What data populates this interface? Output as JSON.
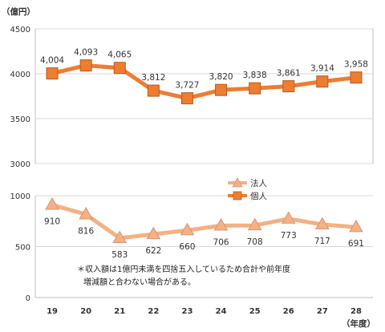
{
  "chart_data": {
    "type": "line",
    "y_unit_label": "（億円）",
    "x_unit_label": "（年度）",
    "categories": [
      "19",
      "20",
      "21",
      "22",
      "23",
      "24",
      "25",
      "26",
      "27",
      "28"
    ],
    "panels": [
      {
        "ylim": [
          3000,
          4500
        ],
        "yticks": [
          "3000",
          "3500",
          "4000",
          "4500"
        ],
        "series": [
          {
            "name": "個人",
            "color": "#ED7D31",
            "marker": "square",
            "values": [
              4004,
              4093,
              4065,
              3812,
              3727,
              3820,
              3838,
              3861,
              3914,
              3958
            ],
            "labels": [
              "4,004",
              "4,093",
              "4,065",
              "3,812",
              "3,727",
              "3,820",
              "3,838",
              "3,861",
              "3,914",
              "3,958"
            ]
          }
        ]
      },
      {
        "ylim": [
          0,
          1000
        ],
        "yticks": [
          "0",
          "500",
          "1000"
        ],
        "series": [
          {
            "name": "法人",
            "color": "#F4B183",
            "marker": "triangle",
            "values": [
              910,
              816,
              583,
              622,
              660,
              706,
              708,
              773,
              717,
              691
            ],
            "labels": [
              "910",
              "816",
              "583",
              "622",
              "660",
              "706",
              "708",
              "773",
              "717",
              "691"
            ]
          }
        ]
      }
    ],
    "legend": [
      {
        "name": "法人",
        "marker": "triangle",
        "color": "#F4B183"
      },
      {
        "name": "個人",
        "marker": "square",
        "color": "#ED7D31"
      }
    ],
    "grid": "horizontal",
    "legend_position": "middle-right"
  },
  "note": {
    "line1": "＊収入額は1億円未満を四捨五入しているため合計や前年度",
    "line2": "増減額と合わない場合がある。"
  }
}
